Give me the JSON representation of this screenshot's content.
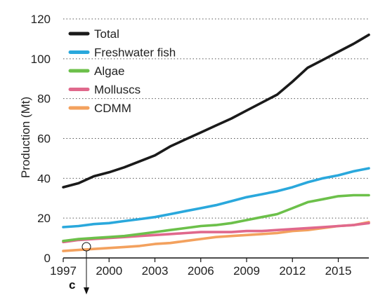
{
  "chart_data": {
    "type": "line",
    "title": "",
    "panel_label": "c",
    "xlabel": "",
    "ylabel": "Production (Mt)",
    "xlim": [
      1997,
      2017
    ],
    "ylim": [
      0,
      120
    ],
    "x_ticks": [
      "1997",
      "2000",
      "2003",
      "2006",
      "2009",
      "2012",
      "2015"
    ],
    "y_ticks": [
      "0",
      "20",
      "40",
      "60",
      "80",
      "100",
      "120"
    ],
    "grid": "horizontal-dotted",
    "legend_position": "top-left",
    "x": [
      1997,
      1998,
      1999,
      2000,
      2001,
      2002,
      2003,
      2004,
      2005,
      2006,
      2007,
      2008,
      2009,
      2010,
      2011,
      2012,
      2013,
      2014,
      2015,
      2016,
      2017
    ],
    "series": [
      {
        "name": "Total",
        "color": "#1a1a1a",
        "values": [
          35.5,
          37.5,
          41,
          43,
          45.5,
          48.5,
          51.5,
          56,
          59.5,
          63,
          66.5,
          70,
          74,
          78,
          82,
          88.5,
          95.5,
          99.5,
          103.5,
          107.5,
          112
        ]
      },
      {
        "name": "Freshwater fish",
        "color": "#2aa8dc",
        "values": [
          15.5,
          16,
          17,
          17.5,
          18.5,
          19.5,
          20.5,
          22,
          23.5,
          25,
          26.5,
          28.5,
          30.5,
          32,
          33.5,
          35.5,
          38,
          40,
          41.5,
          43.5,
          45
        ]
      },
      {
        "name": "Algae",
        "color": "#6cc04a",
        "values": [
          8.5,
          9.5,
          10,
          10.5,
          11,
          12,
          13,
          14,
          15,
          16,
          16.5,
          17.5,
          19,
          20.5,
          22,
          25,
          28,
          29.5,
          31,
          31.5,
          31.5
        ]
      },
      {
        "name": "Molluscs",
        "color": "#e0688c",
        "values": [
          8,
          9,
          9.5,
          10,
          10.5,
          11,
          11.5,
          12,
          12.5,
          13,
          13,
          13,
          13.5,
          13.5,
          14,
          14.5,
          15,
          15.5,
          16,
          16.5,
          17.5
        ]
      },
      {
        "name": "CDMM",
        "color": "#f3a15e",
        "values": [
          3.5,
          4,
          4.5,
          5,
          5.5,
          6,
          7,
          7.5,
          8.5,
          9.5,
          10.5,
          11,
          11.5,
          12,
          12.5,
          13.5,
          14,
          15,
          16,
          16.5,
          18
        ]
      }
    ]
  }
}
